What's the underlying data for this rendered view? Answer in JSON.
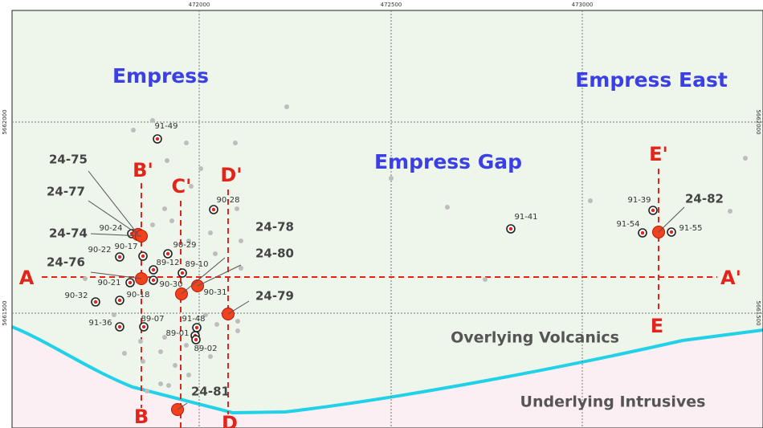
{
  "grid": {
    "easting": [
      "472000",
      "472500",
      "473000"
    ],
    "northing": [
      "5662000",
      "5661500"
    ]
  },
  "areas": [
    "Empress",
    "Empress Gap",
    "Empress East"
  ],
  "units": [
    "Overlying Volcanics",
    "Underlying Intrusives"
  ],
  "sections": [
    "A",
    "A'",
    "B'",
    "B",
    "C'",
    "D'",
    "D",
    "E'",
    "E"
  ],
  "historic_holes": [
    "91-49",
    "90-28",
    "90-24",
    "90-17",
    "90-22",
    "90-29",
    "89-12",
    "89-10",
    "90-21",
    "90-30",
    "90-31",
    "90-32",
    "90-18",
    "91-36",
    "89-07",
    "91-48",
    "89-01",
    "89-02",
    "91-41",
    "91-39",
    "91-54",
    "91-55"
  ],
  "new_holes": [
    "24-75",
    "24-77",
    "24-74",
    "24-76",
    "24-78",
    "24-80",
    "24-79",
    "24-81",
    "24-82"
  ]
}
